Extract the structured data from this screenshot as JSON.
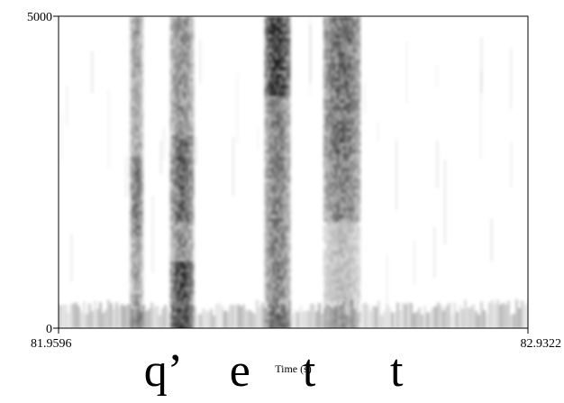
{
  "chart_data": {
    "type": "heatmap",
    "title": "",
    "xlabel": "Time (s)",
    "ylabel": "",
    "x_range": [
      81.9596,
      82.9322
    ],
    "y_range": [
      0,
      5000
    ],
    "x_ticks": [
      "81.9596",
      "82.9322"
    ],
    "y_ticks": [
      "5000",
      "0"
    ],
    "colormap": "white-to-black",
    "segments": [
      {
        "label": "q’",
        "start": 82.12,
        "end": 82.25
      },
      {
        "label": "e",
        "start": 82.25,
        "end": 82.43
      },
      {
        "label": "t",
        "start": 82.43,
        "end": 82.62
      },
      {
        "label": "t",
        "start": 82.62,
        "end": 82.8
      }
    ],
    "energy_bands": [
      {
        "start": 82.107,
        "end": 82.135,
        "intensity": 0.75
      },
      {
        "start": 82.19,
        "end": 82.24,
        "intensity": 0.95
      },
      {
        "start": 82.386,
        "end": 82.44,
        "intensity": 1.0
      },
      {
        "start": 82.508,
        "end": 82.585,
        "intensity": 0.85
      }
    ]
  }
}
